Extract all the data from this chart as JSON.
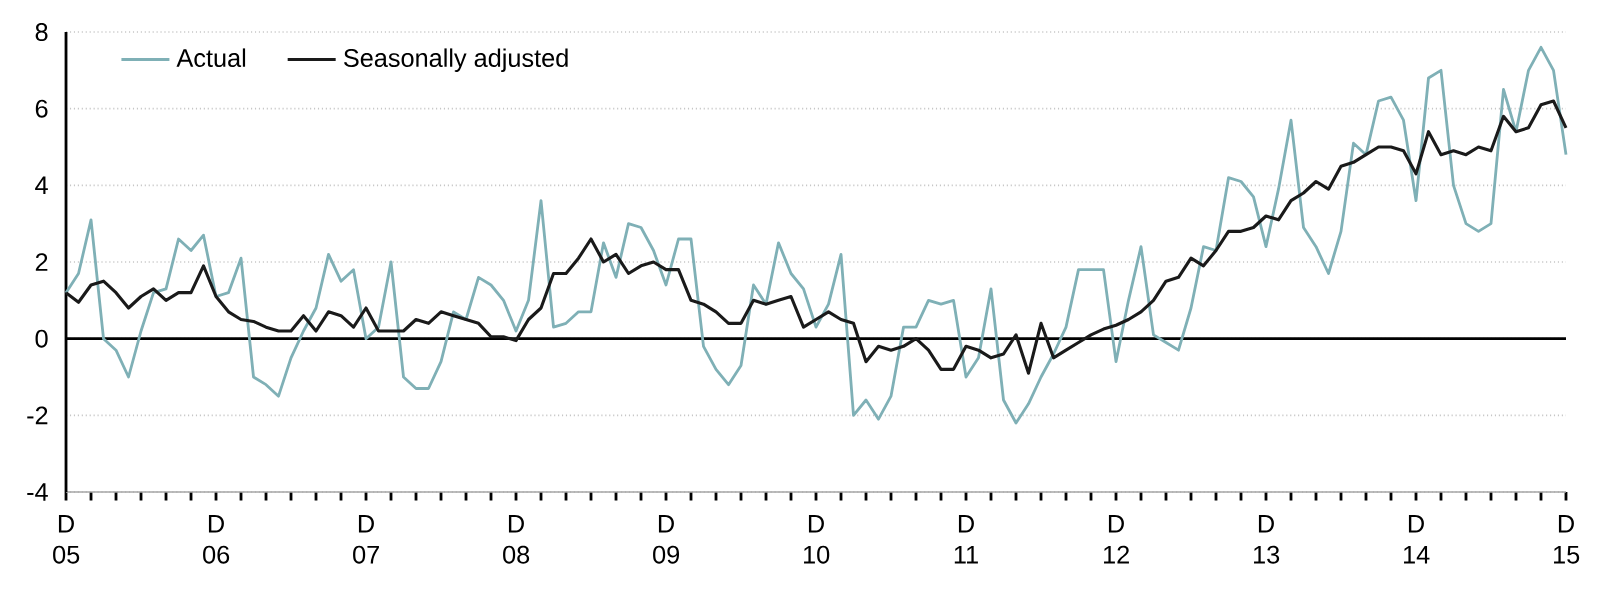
{
  "chart_data": {
    "type": "line",
    "x": [
      "2005-12",
      "2006-01",
      "2006-02",
      "2006-03",
      "2006-04",
      "2006-05",
      "2006-06",
      "2006-07",
      "2006-08",
      "2006-09",
      "2006-10",
      "2006-11",
      "2006-12",
      "2007-01",
      "2007-02",
      "2007-03",
      "2007-04",
      "2007-05",
      "2007-06",
      "2007-07",
      "2007-08",
      "2007-09",
      "2007-10",
      "2007-11",
      "2007-12",
      "2008-01",
      "2008-02",
      "2008-03",
      "2008-04",
      "2008-05",
      "2008-06",
      "2008-07",
      "2008-08",
      "2008-09",
      "2008-10",
      "2008-11",
      "2008-12",
      "2009-01",
      "2009-02",
      "2009-03",
      "2009-04",
      "2009-05",
      "2009-06",
      "2009-07",
      "2009-08",
      "2009-09",
      "2009-10",
      "2009-11",
      "2009-12",
      "2010-01",
      "2010-02",
      "2010-03",
      "2010-04",
      "2010-05",
      "2010-06",
      "2010-07",
      "2010-08",
      "2010-09",
      "2010-10",
      "2010-11",
      "2010-12",
      "2011-01",
      "2011-02",
      "2011-03",
      "2011-04",
      "2011-05",
      "2011-06",
      "2011-07",
      "2011-08",
      "2011-09",
      "2011-10",
      "2011-11",
      "2011-12",
      "2012-01",
      "2012-02",
      "2012-03",
      "2012-04",
      "2012-05",
      "2012-06",
      "2012-07",
      "2012-08",
      "2012-09",
      "2012-10",
      "2012-11",
      "2012-12",
      "2013-01",
      "2013-02",
      "2013-03",
      "2013-04",
      "2013-05",
      "2013-06",
      "2013-07",
      "2013-08",
      "2013-09",
      "2013-10",
      "2013-11",
      "2013-12",
      "2014-01",
      "2014-02",
      "2014-03",
      "2014-04",
      "2014-05",
      "2014-06",
      "2014-07",
      "2014-08",
      "2014-09",
      "2014-10",
      "2014-11",
      "2014-12",
      "2015-01",
      "2015-02",
      "2015-03",
      "2015-04",
      "2015-05",
      "2015-06",
      "2015-07",
      "2015-08",
      "2015-09",
      "2015-10",
      "2015-11",
      "2015-12"
    ],
    "series": [
      {
        "name": "Actual",
        "color": "#7fb0b6",
        "values": [
          1.2,
          1.7,
          3.1,
          0.0,
          -0.3,
          -1.0,
          0.2,
          1.2,
          1.3,
          2.6,
          2.3,
          2.7,
          1.1,
          1.2,
          2.1,
          -1.0,
          -1.2,
          -1.5,
          -0.5,
          0.2,
          0.8,
          2.2,
          1.5,
          1.8,
          0.0,
          0.3,
          2.0,
          -1.0,
          -1.3,
          -1.3,
          -0.6,
          0.7,
          0.5,
          1.6,
          1.4,
          1.0,
          0.2,
          1.0,
          3.6,
          0.3,
          0.4,
          0.7,
          0.7,
          2.5,
          1.6,
          3.0,
          2.9,
          2.3,
          1.4,
          2.6,
          2.6,
          -0.2,
          -0.8,
          -1.2,
          -0.7,
          1.4,
          0.9,
          2.5,
          1.7,
          1.3,
          0.3,
          0.9,
          2.2,
          -2.0,
          -1.6,
          -2.1,
          -1.5,
          0.3,
          0.3,
          1.0,
          0.9,
          1.0,
          -1.0,
          -0.5,
          1.3,
          -1.6,
          -2.2,
          -1.7,
          -1.0,
          -0.4,
          0.3,
          1.8,
          1.8,
          1.8,
          -0.6,
          1.0,
          2.4,
          0.1,
          -0.1,
          -0.3,
          0.8,
          2.4,
          2.3,
          4.2,
          4.1,
          3.7,
          2.4,
          3.9,
          5.7,
          2.9,
          2.4,
          1.7,
          2.8,
          5.1,
          4.8,
          6.2,
          6.3,
          5.7,
          3.6,
          6.8,
          7.0,
          4.0,
          3.0,
          2.8,
          3.0,
          6.5,
          5.4,
          7.0,
          7.6,
          7.0,
          4.8
        ]
      },
      {
        "name": "Seasonally adjusted",
        "color": "#1a1a1a",
        "values": [
          1.2,
          0.95,
          1.4,
          1.5,
          1.2,
          0.8,
          1.1,
          1.3,
          1.0,
          1.2,
          1.2,
          1.9,
          1.1,
          0.7,
          0.5,
          0.45,
          0.3,
          0.2,
          0.2,
          0.6,
          0.2,
          0.7,
          0.6,
          0.3,
          0.8,
          0.2,
          0.2,
          0.2,
          0.5,
          0.4,
          0.7,
          0.6,
          0.5,
          0.4,
          0.05,
          0.05,
          -0.05,
          0.5,
          0.8,
          1.7,
          1.7,
          2.1,
          2.6,
          2.0,
          2.2,
          1.7,
          1.9,
          2.0,
          1.8,
          1.8,
          1.0,
          0.9,
          0.7,
          0.4,
          0.4,
          1.0,
          0.9,
          1.0,
          1.1,
          0.3,
          0.5,
          0.7,
          0.5,
          0.4,
          -0.6,
          -0.2,
          -0.3,
          -0.2,
          0.0,
          -0.3,
          -0.8,
          -0.8,
          -0.2,
          -0.3,
          -0.5,
          -0.4,
          0.1,
          -0.9,
          0.4,
          -0.5,
          -0.3,
          -0.1,
          0.1,
          0.25,
          0.35,
          0.5,
          0.7,
          1.0,
          1.5,
          1.6,
          2.1,
          1.9,
          2.3,
          2.8,
          2.8,
          2.9,
          3.2,
          3.1,
          3.6,
          3.8,
          4.1,
          3.9,
          4.5,
          4.6,
          4.8,
          5.0,
          5.0,
          4.9,
          4.3,
          5.4,
          4.8,
          4.9,
          4.8,
          5.0,
          4.9,
          5.8,
          5.4,
          5.5,
          6.1,
          6.2,
          5.5
        ]
      }
    ],
    "xlim": [
      "2005-12",
      "2015-12"
    ],
    "xticks": [
      {
        "value": "2005-12",
        "label": "D 05"
      },
      {
        "value": "2006-02",
        "label": null
      },
      {
        "value": "2006-04",
        "label": null
      },
      {
        "value": "2006-06",
        "label": null
      },
      {
        "value": "2006-08",
        "label": null
      },
      {
        "value": "2006-10",
        "label": null
      },
      {
        "value": "2006-12",
        "label": "D 06"
      },
      {
        "value": "2007-02",
        "label": null
      },
      {
        "value": "2007-04",
        "label": null
      },
      {
        "value": "2007-06",
        "label": null
      },
      {
        "value": "2007-08",
        "label": null
      },
      {
        "value": "2007-10",
        "label": null
      },
      {
        "value": "2007-12",
        "label": "D 07"
      },
      {
        "value": "2008-02",
        "label": null
      },
      {
        "value": "2008-04",
        "label": null
      },
      {
        "value": "2008-06",
        "label": null
      },
      {
        "value": "2008-08",
        "label": null
      },
      {
        "value": "2008-10",
        "label": null
      },
      {
        "value": "2008-12",
        "label": "D 08"
      },
      {
        "value": "2009-02",
        "label": null
      },
      {
        "value": "2009-04",
        "label": null
      },
      {
        "value": "2009-06",
        "label": null
      },
      {
        "value": "2009-08",
        "label": null
      },
      {
        "value": "2009-10",
        "label": null
      },
      {
        "value": "2009-12",
        "label": "D 09"
      },
      {
        "value": "2010-02",
        "label": null
      },
      {
        "value": "2010-04",
        "label": null
      },
      {
        "value": "2010-06",
        "label": null
      },
      {
        "value": "2010-08",
        "label": null
      },
      {
        "value": "2010-10",
        "label": null
      },
      {
        "value": "2010-12",
        "label": "D 10"
      },
      {
        "value": "2011-02",
        "label": null
      },
      {
        "value": "2011-04",
        "label": null
      },
      {
        "value": "2011-06",
        "label": null
      },
      {
        "value": "2011-08",
        "label": null
      },
      {
        "value": "2011-10",
        "label": null
      },
      {
        "value": "2011-12",
        "label": "D 11"
      },
      {
        "value": "2012-02",
        "label": null
      },
      {
        "value": "2012-04",
        "label": null
      },
      {
        "value": "2012-06",
        "label": null
      },
      {
        "value": "2012-08",
        "label": null
      },
      {
        "value": "2012-10",
        "label": null
      },
      {
        "value": "2012-12",
        "label": "D 12"
      },
      {
        "value": "2013-02",
        "label": null
      },
      {
        "value": "2013-04",
        "label": null
      },
      {
        "value": "2013-06",
        "label": null
      },
      {
        "value": "2013-08",
        "label": null
      },
      {
        "value": "2013-10",
        "label": null
      },
      {
        "value": "2013-12",
        "label": "D 13"
      },
      {
        "value": "2014-02",
        "label": null
      },
      {
        "value": "2014-04",
        "label": null
      },
      {
        "value": "2014-06",
        "label": null
      },
      {
        "value": "2014-08",
        "label": null
      },
      {
        "value": "2014-10",
        "label": null
      },
      {
        "value": "2014-12",
        "label": "D 14"
      },
      {
        "value": "2015-02",
        "label": null
      },
      {
        "value": "2015-04",
        "label": null
      },
      {
        "value": "2015-06",
        "label": null
      },
      {
        "value": "2015-08",
        "label": null
      },
      {
        "value": "2015-10",
        "label": null
      },
      {
        "value": "2015-12",
        "label": "D 15"
      }
    ],
    "ylim": [
      -4,
      8
    ],
    "yticks": [
      -4,
      -2,
      0,
      2,
      4,
      6,
      8
    ],
    "ref_lines": [
      {
        "axis": "y",
        "value": 0,
        "color": "#000000"
      }
    ],
    "grid": "y",
    "legend": "top left",
    "marker": "none",
    "line_style": "solid"
  }
}
